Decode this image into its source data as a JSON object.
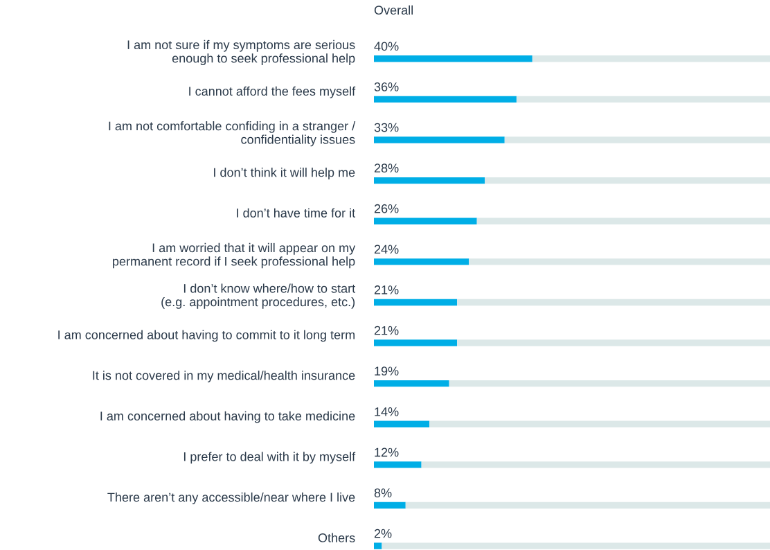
{
  "chart_data": {
    "type": "bar",
    "orientation": "horizontal",
    "stacked": true,
    "title": "Overall",
    "categories": [
      "I am not sure if my symptoms are serious\nenough to seek professional help",
      "I cannot afford the fees myself",
      "I am not comfortable confiding in a stranger /\nconfidentiality issues",
      "I don’t think it will help me",
      "I don’t have time for it",
      "I am worried that it will appear on my\npermanent record if I seek professional help",
      "I don’t know where/how to start\n(e.g. appointment procedures, etc.)",
      "I am concerned about having to commit to it long term",
      "It is not covered in my medical/health insurance",
      "I am concerned about having to take medicine",
      "I prefer to deal with it by myself",
      "There aren’t any accessible/near where I live",
      "Others"
    ],
    "series": [
      {
        "color": "#00aee6",
        "values": [
          40,
          36,
          33,
          28,
          26,
          24,
          21,
          21,
          19,
          14,
          12,
          8,
          2
        ],
        "value_labels": [
          "40%",
          "36%",
          "33%",
          "28%",
          "26%",
          "24%",
          "21%",
          "21%",
          "19%",
          "14%",
          "12%",
          "8%",
          "2%"
        ]
      },
      {
        "color": "#dce8e8",
        "values": [
          60,
          64,
          67,
          72,
          74,
          76,
          79,
          79,
          81,
          86,
          88,
          92,
          98
        ]
      }
    ],
    "xlim": [
      0,
      100
    ],
    "tick_labels": "y",
    "grid": false,
    "legend": false
  }
}
